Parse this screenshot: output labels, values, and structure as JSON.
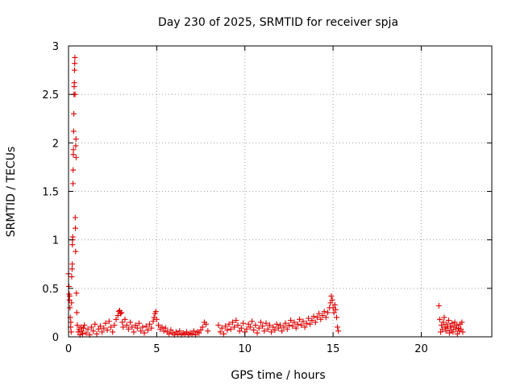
{
  "chart_data": {
    "type": "scatter",
    "title": "Day 230 of 2025, SRMTID for receiver spja",
    "xlabel": "GPS time / hours",
    "ylabel": "SRMTID / TECUs",
    "xlim": [
      0,
      24
    ],
    "ylim": [
      0,
      3
    ],
    "x_ticks": [
      {
        "value": 0,
        "label": "0"
      },
      {
        "value": 5,
        "label": "5"
      },
      {
        "value": 10,
        "label": "10"
      },
      {
        "value": 15,
        "label": "15"
      },
      {
        "value": 20,
        "label": "20"
      }
    ],
    "y_ticks": [
      {
        "value": 0,
        "label": "0"
      },
      {
        "value": 0.5,
        "label": "0.5"
      },
      {
        "value": 1,
        "label": "1"
      },
      {
        "value": 1.5,
        "label": "1.5"
      },
      {
        "value": 2,
        "label": "2"
      },
      {
        "value": 2.5,
        "label": "2.5"
      },
      {
        "value": 3,
        "label": "3"
      }
    ],
    "grid": true,
    "marker": "+",
    "marker_color": "#e00000",
    "series": [
      {
        "name": "SRMTID",
        "points": [
          [
            0.0,
            0.65
          ],
          [
            0.02,
            0.52
          ],
          [
            0.04,
            0.44
          ],
          [
            0.05,
            0.38
          ],
          [
            0.06,
            0.42
          ],
          [
            0.08,
            0.3
          ],
          [
            0.1,
            0.2
          ],
          [
            0.12,
            0.1
          ],
          [
            0.13,
            0.15
          ],
          [
            0.15,
            0.05
          ],
          [
            0.17,
            0.35
          ],
          [
            0.18,
            0.62
          ],
          [
            0.2,
            0.7
          ],
          [
            0.21,
            0.75
          ],
          [
            0.22,
            0.95
          ],
          [
            0.23,
            1.0
          ],
          [
            0.24,
            1.03
          ],
          [
            0.25,
            1.58
          ],
          [
            0.26,
            1.72
          ],
          [
            0.27,
            1.88
          ],
          [
            0.28,
            1.93
          ],
          [
            0.29,
            2.12
          ],
          [
            0.3,
            2.3
          ],
          [
            0.31,
            2.5
          ],
          [
            0.32,
            2.58
          ],
          [
            0.33,
            2.62
          ],
          [
            0.34,
            2.75
          ],
          [
            0.35,
            2.82
          ],
          [
            0.36,
            2.88
          ],
          [
            0.37,
            2.5
          ],
          [
            0.38,
            1.23
          ],
          [
            0.39,
            1.12
          ],
          [
            0.4,
            0.88
          ],
          [
            0.41,
            1.97
          ],
          [
            0.42,
            2.04
          ],
          [
            0.43,
            1.85
          ],
          [
            0.45,
            0.45
          ],
          [
            0.47,
            0.25
          ],
          [
            0.5,
            0.12
          ],
          [
            0.55,
            0.05
          ],
          [
            0.6,
            0.08
          ],
          [
            0.65,
            0.02
          ],
          [
            0.7,
            0.1
          ],
          [
            0.75,
            0.06
          ],
          [
            0.8,
            0.03
          ],
          [
            0.85,
            0.09
          ],
          [
            0.9,
            0.12
          ],
          [
            1.0,
            0.04
          ],
          [
            1.1,
            0.08
          ],
          [
            1.2,
            0.02
          ],
          [
            1.3,
            0.1
          ],
          [
            1.4,
            0.06
          ],
          [
            1.5,
            0.13
          ],
          [
            1.6,
            0.03
          ],
          [
            1.7,
            0.08
          ],
          [
            1.8,
            0.11
          ],
          [
            1.9,
            0.05
          ],
          [
            2.0,
            0.09
          ],
          [
            2.1,
            0.14
          ],
          [
            2.2,
            0.07
          ],
          [
            2.3,
            0.16
          ],
          [
            2.4,
            0.1
          ],
          [
            2.5,
            0.05
          ],
          [
            2.6,
            0.12
          ],
          [
            2.7,
            0.18
          ],
          [
            2.8,
            0.22
          ],
          [
            2.85,
            0.26
          ],
          [
            2.9,
            0.27
          ],
          [
            2.95,
            0.24
          ],
          [
            3.0,
            0.25
          ],
          [
            3.05,
            0.15
          ],
          [
            3.1,
            0.1
          ],
          [
            3.2,
            0.18
          ],
          [
            3.3,
            0.12
          ],
          [
            3.4,
            0.08
          ],
          [
            3.5,
            0.15
          ],
          [
            3.6,
            0.1
          ],
          [
            3.7,
            0.05
          ],
          [
            3.8,
            0.12
          ],
          [
            3.9,
            0.09
          ],
          [
            4.0,
            0.14
          ],
          [
            4.1,
            0.06
          ],
          [
            4.2,
            0.1
          ],
          [
            4.3,
            0.04
          ],
          [
            4.4,
            0.11
          ],
          [
            4.5,
            0.07
          ],
          [
            4.6,
            0.13
          ],
          [
            4.7,
            0.09
          ],
          [
            4.8,
            0.16
          ],
          [
            4.85,
            0.2
          ],
          [
            4.9,
            0.24
          ],
          [
            4.95,
            0.26
          ],
          [
            5.0,
            0.18
          ],
          [
            5.1,
            0.12
          ],
          [
            5.2,
            0.08
          ],
          [
            5.3,
            0.1
          ],
          [
            5.4,
            0.06
          ],
          [
            5.5,
            0.09
          ],
          [
            5.6,
            0.05
          ],
          [
            5.7,
            0.03
          ],
          [
            5.8,
            0.07
          ],
          [
            5.9,
            0.04
          ],
          [
            6.0,
            0.02
          ],
          [
            6.1,
            0.05
          ],
          [
            6.2,
            0.03
          ],
          [
            6.3,
            0.06
          ],
          [
            6.4,
            0.02
          ],
          [
            6.5,
            0.04
          ],
          [
            6.6,
            0.03
          ],
          [
            6.7,
            0.05
          ],
          [
            6.8,
            0.02
          ],
          [
            6.9,
            0.04
          ],
          [
            7.0,
            0.03
          ],
          [
            7.1,
            0.06
          ],
          [
            7.2,
            0.02
          ],
          [
            7.3,
            0.05
          ],
          [
            7.4,
            0.04
          ],
          [
            7.5,
            0.07
          ],
          [
            7.6,
            0.1
          ],
          [
            7.7,
            0.15
          ],
          [
            7.8,
            0.13
          ],
          [
            7.9,
            0.06
          ],
          [
            8.5,
            0.12
          ],
          [
            8.6,
            0.05
          ],
          [
            8.7,
            0.09
          ],
          [
            8.8,
            0.03
          ],
          [
            8.9,
            0.11
          ],
          [
            9.0,
            0.07
          ],
          [
            9.1,
            0.13
          ],
          [
            9.2,
            0.08
          ],
          [
            9.3,
            0.15
          ],
          [
            9.4,
            0.1
          ],
          [
            9.5,
            0.17
          ],
          [
            9.6,
            0.12
          ],
          [
            9.7,
            0.06
          ],
          [
            9.8,
            0.09
          ],
          [
            9.9,
            0.14
          ],
          [
            10.0,
            0.05
          ],
          [
            10.1,
            0.08
          ],
          [
            10.2,
            0.13
          ],
          [
            10.3,
            0.1
          ],
          [
            10.4,
            0.16
          ],
          [
            10.5,
            0.07
          ],
          [
            10.6,
            0.12
          ],
          [
            10.7,
            0.04
          ],
          [
            10.8,
            0.09
          ],
          [
            10.9,
            0.15
          ],
          [
            11.0,
            0.11
          ],
          [
            11.1,
            0.06
          ],
          [
            11.2,
            0.14
          ],
          [
            11.3,
            0.08
          ],
          [
            11.4,
            0.12
          ],
          [
            11.5,
            0.05
          ],
          [
            11.6,
            0.1
          ],
          [
            11.7,
            0.07
          ],
          [
            11.8,
            0.13
          ],
          [
            11.9,
            0.09
          ],
          [
            12.0,
            0.12
          ],
          [
            12.1,
            0.06
          ],
          [
            12.2,
            0.1
          ],
          [
            12.3,
            0.14
          ],
          [
            12.4,
            0.08
          ],
          [
            12.5,
            0.12
          ],
          [
            12.6,
            0.17
          ],
          [
            12.7,
            0.11
          ],
          [
            12.8,
            0.15
          ],
          [
            12.9,
            0.09
          ],
          [
            13.0,
            0.13
          ],
          [
            13.1,
            0.18
          ],
          [
            13.2,
            0.12
          ],
          [
            13.3,
            0.16
          ],
          [
            13.4,
            0.1
          ],
          [
            13.5,
            0.14
          ],
          [
            13.6,
            0.19
          ],
          [
            13.7,
            0.13
          ],
          [
            13.8,
            0.17
          ],
          [
            13.9,
            0.21
          ],
          [
            14.0,
            0.15
          ],
          [
            14.1,
            0.2
          ],
          [
            14.2,
            0.24
          ],
          [
            14.3,
            0.18
          ],
          [
            14.4,
            0.22
          ],
          [
            14.5,
            0.26
          ],
          [
            14.6,
            0.2
          ],
          [
            14.7,
            0.25
          ],
          [
            14.8,
            0.3
          ],
          [
            14.85,
            0.35
          ],
          [
            14.9,
            0.42
          ],
          [
            14.95,
            0.38
          ],
          [
            15.0,
            0.3
          ],
          [
            15.05,
            0.25
          ],
          [
            15.1,
            0.33
          ],
          [
            15.15,
            0.28
          ],
          [
            15.2,
            0.2
          ],
          [
            15.25,
            0.1
          ],
          [
            15.3,
            0.06
          ],
          [
            21.0,
            0.32
          ],
          [
            21.05,
            0.18
          ],
          [
            21.1,
            0.05
          ],
          [
            21.15,
            0.12
          ],
          [
            21.2,
            0.08
          ],
          [
            21.25,
            0.15
          ],
          [
            21.3,
            0.2
          ],
          [
            21.35,
            0.1
          ],
          [
            21.4,
            0.06
          ],
          [
            21.45,
            0.13
          ],
          [
            21.5,
            0.09
          ],
          [
            21.55,
            0.17
          ],
          [
            21.6,
            0.04
          ],
          [
            21.65,
            0.11
          ],
          [
            21.7,
            0.07
          ],
          [
            21.75,
            0.14
          ],
          [
            21.8,
            0.05
          ],
          [
            21.85,
            0.1
          ],
          [
            21.9,
            0.15
          ],
          [
            21.95,
            0.08
          ],
          [
            22.0,
            0.12
          ],
          [
            22.05,
            0.03
          ],
          [
            22.1,
            0.09
          ],
          [
            22.15,
            0.06
          ],
          [
            22.2,
            0.13
          ],
          [
            22.25,
            0.08
          ],
          [
            22.3,
            0.15
          ],
          [
            22.35,
            0.05
          ]
        ]
      }
    ]
  }
}
